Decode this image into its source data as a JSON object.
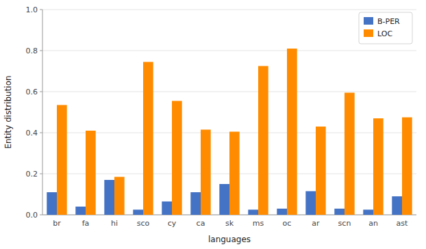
{
  "chart_data": {
    "type": "bar",
    "xlabel": "languages",
    "ylabel": "Entity distribution",
    "categories": [
      "br",
      "fa",
      "hi",
      "sco",
      "cy",
      "ca",
      "sk",
      "ms",
      "oc",
      "ar",
      "scn",
      "an",
      "ast"
    ],
    "series": [
      {
        "name": "B-PER",
        "color": "#4472C4",
        "values": [
          0.11,
          0.04,
          0.17,
          0.025,
          0.065,
          0.11,
          0.15,
          0.025,
          0.03,
          0.115,
          0.03,
          0.025,
          0.09
        ]
      },
      {
        "name": "LOC",
        "color": "#FF8C00",
        "values": [
          0.535,
          0.41,
          0.185,
          0.745,
          0.555,
          0.415,
          0.405,
          0.725,
          0.81,
          0.43,
          0.595,
          0.47,
          0.475
        ]
      }
    ],
    "ylim": [
      0.0,
      1.0
    ],
    "yticks": [
      {
        "value": 0,
        "label": "0.0"
      },
      0.2,
      0.4,
      0.6,
      0.8,
      {
        "value": 1,
        "label": "1.0"
      }
    ],
    "grid": true,
    "legend": "upper right"
  }
}
